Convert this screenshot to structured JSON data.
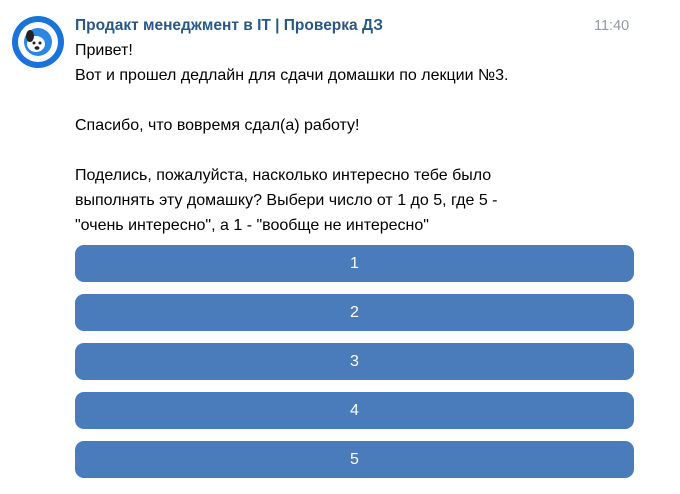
{
  "message": {
    "sender": "Продакт менеджмент в IT | Проверка ДЗ",
    "time": "11:40",
    "paragraphs": [
      [
        "Привет!",
        "Вот и прошел дедлайн для сдачи домашки по лекции №3."
      ],
      [
        "Спасибо, что вовремя сдал(а) работу!"
      ],
      [
        "Поделись, пожалуйста, насколько интересно тебе было",
        "выполнять эту домашку? Выбери число от 1 до 5, где 5 -",
        "\"очень интересно\", а 1 - \"вообще не интересно\""
      ]
    ],
    "buttons": [
      "1",
      "2",
      "3",
      "4",
      "5"
    ]
  }
}
